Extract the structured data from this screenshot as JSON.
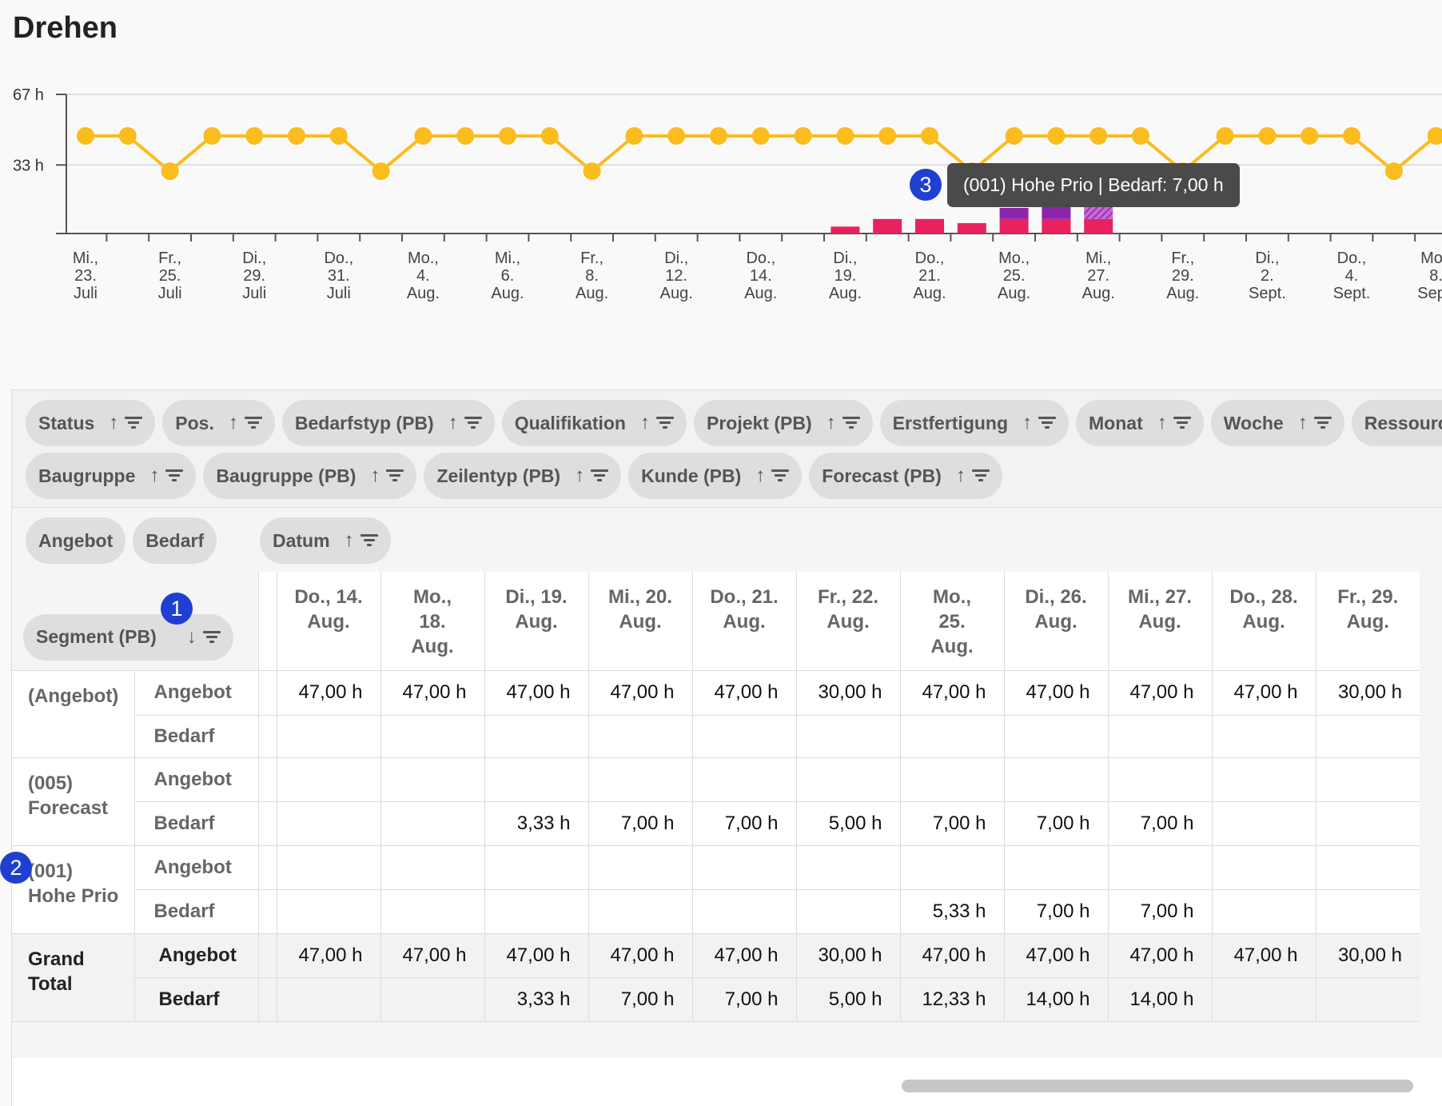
{
  "title": "Drehen",
  "chart_data": {
    "type": "line",
    "yaxis": {
      "ticks": [
        "67 h",
        "33 h"
      ],
      "ylim": [
        0,
        67
      ]
    },
    "x_labels": [
      [
        "Mi.,",
        "23.",
        "Juli"
      ],
      [
        "Fr.,",
        "25.",
        "Juli"
      ],
      [
        "Di.,",
        "29.",
        "Juli"
      ],
      [
        "Do.,",
        "31.",
        "Juli"
      ],
      [
        "Mo.,",
        "4.",
        "Aug."
      ],
      [
        "Mi.,",
        "6.",
        "Aug."
      ],
      [
        "Fr.,",
        "8.",
        "Aug."
      ],
      [
        "Di.,",
        "12.",
        "Aug."
      ],
      [
        "Do.,",
        "14.",
        "Aug."
      ],
      [
        "Di.,",
        "19.",
        "Aug."
      ],
      [
        "Do.,",
        "21.",
        "Aug."
      ],
      [
        "Mo.,",
        "25.",
        "Aug."
      ],
      [
        "Mi.,",
        "27.",
        "Aug."
      ],
      [
        "Fr.,",
        "29.",
        "Aug."
      ],
      [
        "Di.,",
        "2.",
        "Sept."
      ],
      [
        "Do.,",
        "4.",
        "Sept."
      ],
      [
        "Mo.,",
        "8.",
        "Sept."
      ]
    ],
    "series": [
      {
        "name": "Angebot",
        "type": "line",
        "color": "#fbbc1e",
        "values": [
          47,
          47,
          30,
          47,
          47,
          47,
          47,
          30,
          47,
          47,
          47,
          47,
          30,
          47,
          47,
          47,
          47,
          47,
          47,
          47,
          47,
          30,
          47,
          47,
          47,
          47,
          30,
          47,
          47,
          47,
          47,
          30,
          47
        ]
      },
      {
        "name": "(005) Forecast",
        "type": "bar",
        "color": "#e8225e",
        "values": [
          null,
          null,
          null,
          null,
          null,
          null,
          null,
          null,
          null,
          null,
          null,
          null,
          null,
          null,
          null,
          null,
          null,
          null,
          3.33,
          7,
          7,
          5,
          7,
          7,
          7,
          null,
          null,
          null,
          null,
          null,
          null,
          null,
          null
        ]
      },
      {
        "name": "(001) Hohe Prio",
        "type": "bar",
        "color": "#8e24aa",
        "values": [
          null,
          null,
          null,
          null,
          null,
          null,
          null,
          null,
          null,
          null,
          null,
          null,
          null,
          null,
          null,
          null,
          null,
          null,
          null,
          null,
          null,
          null,
          5.33,
          7,
          7,
          null,
          null,
          null,
          null,
          null,
          null,
          null,
          null
        ]
      }
    ]
  },
  "tooltip": {
    "text": "(001) Hohe Prio | Bedarf: 7,00 h"
  },
  "badges": [
    "1",
    "2",
    "3"
  ],
  "filter_pills_row1": [
    "Status",
    "Pos.",
    "Bedarfstyp (PB)",
    "Qualifikation",
    "Projekt (PB)",
    "Erstfertigung",
    "Monat",
    "Woche",
    "Ressource"
  ],
  "filter_pills_row2": [
    "Baugruppe",
    "Baugruppe (PB)",
    "Zeilentyp (PB)",
    "Kunde (PB)",
    "Forecast (PB)"
  ],
  "value_pills": [
    "Angebot",
    "Bedarf"
  ],
  "column_pill": "Datum",
  "row_pill": "Segment (PB)",
  "icons": {
    "sort_asc": "↑",
    "sort_desc": "↓",
    "filter": "filter-icon"
  },
  "columns": [
    [
      "Do., 14.",
      "Aug."
    ],
    [
      "Mo.,",
      "18.",
      "Aug."
    ],
    [
      "Di., 19.",
      "Aug."
    ],
    [
      "Mi., 20.",
      "Aug."
    ],
    [
      "Do., 21.",
      "Aug."
    ],
    [
      "Fr., 22.",
      "Aug."
    ],
    [
      "Mo.,",
      "25.",
      "Aug."
    ],
    [
      "Di., 26.",
      "Aug."
    ],
    [
      "Mi., 27.",
      "Aug."
    ],
    [
      "Do., 28.",
      "Aug."
    ],
    [
      "Fr., 29.",
      "Aug."
    ]
  ],
  "row_groups": [
    {
      "segment": [
        "(Angebot)"
      ],
      "rows": [
        {
          "label": "Angebot",
          "values": [
            "47,00 h",
            "47,00 h",
            "47,00 h",
            "47,00 h",
            "47,00 h",
            "30,00 h",
            "47,00 h",
            "47,00 h",
            "47,00 h",
            "47,00 h",
            "30,00 h"
          ]
        },
        {
          "label": "Bedarf",
          "values": [
            "",
            "",
            "",
            "",
            "",
            "",
            "",
            "",
            "",
            "",
            ""
          ]
        }
      ]
    },
    {
      "segment": [
        "(005)",
        "Forecast"
      ],
      "rows": [
        {
          "label": "Angebot",
          "values": [
            "",
            "",
            "",
            "",
            "",
            "",
            "",
            "",
            "",
            "",
            ""
          ]
        },
        {
          "label": "Bedarf",
          "values": [
            "",
            "",
            "3,33 h",
            "7,00 h",
            "7,00 h",
            "5,00 h",
            "7,00 h",
            "7,00 h",
            "7,00 h",
            "",
            ""
          ]
        }
      ]
    },
    {
      "segment": [
        "(001)",
        "Hohe Prio"
      ],
      "rows": [
        {
          "label": "Angebot",
          "values": [
            "",
            "",
            "",
            "",
            "",
            "",
            "",
            "",
            "",
            "",
            ""
          ]
        },
        {
          "label": "Bedarf",
          "values": [
            "",
            "",
            "",
            "",
            "",
            "",
            "5,33 h",
            "7,00 h",
            "7,00 h",
            "",
            ""
          ]
        }
      ]
    },
    {
      "segment": [
        "Grand",
        "Total"
      ],
      "total": true,
      "rows": [
        {
          "label": "Angebot",
          "values": [
            "47,00 h",
            "47,00 h",
            "47,00 h",
            "47,00 h",
            "47,00 h",
            "30,00 h",
            "47,00 h",
            "47,00 h",
            "47,00 h",
            "47,00 h",
            "30,00 h"
          ]
        },
        {
          "label": "Bedarf",
          "values": [
            "",
            "",
            "3,33 h",
            "7,00 h",
            "7,00 h",
            "5,00 h",
            "12,33 h",
            "14,00 h",
            "14,00 h",
            "",
            ""
          ]
        }
      ]
    }
  ]
}
